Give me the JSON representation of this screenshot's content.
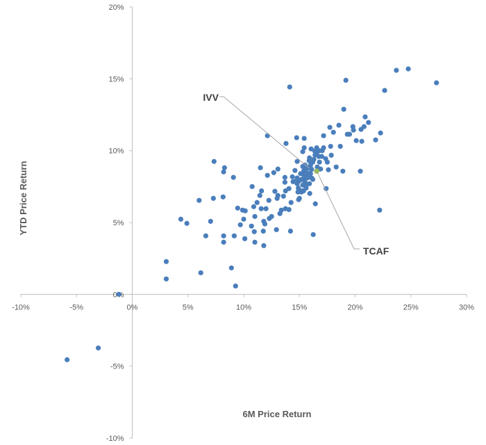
{
  "chart_data": {
    "type": "scatter",
    "xlabel": "6M Price Return",
    "ylabel": "YTD Price Return",
    "xlim": [
      -10,
      30
    ],
    "ylim": [
      -10,
      20
    ],
    "x_ticks": [
      "-10%",
      "-5%",
      "0%",
      "5%",
      "10%",
      "15%",
      "20%",
      "25%",
      "30%"
    ],
    "y_ticks": [
      "-10%",
      "-5%",
      "0%",
      "5%",
      "10%",
      "15%",
      "20%"
    ],
    "x_tick_values": [
      -10,
      -5,
      0,
      5,
      10,
      15,
      20,
      25,
      30
    ],
    "y_tick_values": [
      -10,
      -5,
      0,
      5,
      10,
      15,
      20
    ],
    "grid": false,
    "point_color": "#4a7ebb",
    "highlight_color": "#9bbb59",
    "axis_color": "#bfbfbf",
    "points": [
      [
        -5.85,
        -4.55
      ],
      [
        -3.05,
        -3.73
      ],
      [
        -1.2,
        0
      ],
      [
        3.05,
        2.28
      ],
      [
        3.05,
        1.07
      ],
      [
        4.36,
        5.23
      ],
      [
        4.9,
        4.94
      ],
      [
        6.0,
        6.54
      ],
      [
        6.15,
        1.5
      ],
      [
        6.6,
        4.07
      ],
      [
        7.03,
        5.08
      ],
      [
        7.28,
        6.68
      ],
      [
        7.34,
        9.25
      ],
      [
        8.15,
        6.78
      ],
      [
        8.2,
        3.63
      ],
      [
        8.2,
        4.07
      ],
      [
        8.28,
        8.81
      ],
      [
        8.2,
        8.52
      ],
      [
        8.9,
        1.84
      ],
      [
        9.08,
        8.14
      ],
      [
        9.27,
        0.58
      ],
      [
        9.15,
        4.07
      ],
      [
        9.46,
        6.0
      ],
      [
        9.7,
        4.84
      ],
      [
        9.9,
        5.86
      ],
      [
        10.14,
        5.81
      ],
      [
        10.0,
        5.23
      ],
      [
        10.1,
        3.87
      ],
      [
        10.7,
        4.75
      ],
      [
        10.76,
        7.5
      ],
      [
        10.9,
        6.1
      ],
      [
        11.0,
        3.63
      ],
      [
        10.95,
        4.36
      ],
      [
        11.0,
        5.42
      ],
      [
        11.2,
        6.39
      ],
      [
        11.45,
        6.88
      ],
      [
        11.5,
        8.81
      ],
      [
        11.57,
        5.96
      ],
      [
        11.6,
        7.2
      ],
      [
        11.76,
        4.4
      ],
      [
        11.8,
        5.08
      ],
      [
        12.0,
        5.96
      ],
      [
        11.8,
        3.39
      ],
      [
        11.9,
        4.9
      ],
      [
        12.13,
        11.04
      ],
      [
        12.13,
        8.28
      ],
      [
        12.26,
        6.54
      ],
      [
        12.3,
        5.28
      ],
      [
        12.5,
        5.42
      ],
      [
        12.7,
        8.47
      ],
      [
        12.8,
        7.17
      ],
      [
        12.94,
        4.5
      ],
      [
        13.07,
        8.72
      ],
      [
        13.0,
        6.68
      ],
      [
        13.07,
        6.88
      ],
      [
        13.25,
        5.62
      ],
      [
        13.38,
        5.86
      ],
      [
        13.57,
        6.83
      ],
      [
        13.7,
        8.14
      ],
      [
        13.7,
        7.8
      ],
      [
        13.75,
        7.2
      ],
      [
        13.75,
        5.96
      ],
      [
        13.8,
        10.5
      ],
      [
        14.06,
        5.9
      ],
      [
        14.06,
        7.36
      ],
      [
        14.13,
        14.43
      ],
      [
        14.2,
        4.4
      ],
      [
        14.25,
        6.39
      ],
      [
        14.37,
        8.18
      ],
      [
        14.43,
        7.84
      ],
      [
        14.6,
        8.62
      ],
      [
        14.75,
        10.9
      ],
      [
        14.8,
        9.25
      ],
      [
        14.8,
        7.7
      ],
      [
        14.87,
        7.12
      ],
      [
        14.93,
        6.59
      ],
      [
        15.0,
        6.68
      ],
      [
        15.18,
        7.12
      ],
      [
        15.3,
        9.93
      ],
      [
        15.37,
        7.2
      ],
      [
        15.43,
        10.85
      ],
      [
        15.43,
        10.2
      ],
      [
        15.43,
        7.99
      ],
      [
        15.56,
        8.67
      ],
      [
        15.62,
        7.6
      ],
      [
        15.74,
        8.38
      ],
      [
        15.87,
        9.3
      ],
      [
        15.93,
        8.43
      ],
      [
        15.93,
        7.02
      ],
      [
        16.05,
        10.12
      ],
      [
        16.1,
        8.09
      ],
      [
        16.24,
        4.16
      ],
      [
        16.37,
        9.98
      ],
      [
        16.43,
        6.3
      ],
      [
        16.55,
        10.2
      ],
      [
        16.6,
        8.86
      ],
      [
        16.74,
        9.59
      ],
      [
        16.8,
        9.2
      ],
      [
        16.9,
        8.72
      ],
      [
        17.05,
        10.0
      ],
      [
        17.17,
        11.04
      ],
      [
        17.17,
        10.2
      ],
      [
        17.4,
        7.36
      ],
      [
        17.36,
        9.44
      ],
      [
        17.5,
        9.2
      ],
      [
        17.6,
        8.67
      ],
      [
        17.73,
        11.62
      ],
      [
        17.8,
        10.3
      ],
      [
        17.86,
        9.68
      ],
      [
        18.05,
        11.28
      ],
      [
        18.3,
        8.86
      ],
      [
        18.54,
        11.77
      ],
      [
        18.67,
        10.3
      ],
      [
        18.9,
        8.57
      ],
      [
        18.98,
        12.88
      ],
      [
        19.17,
        14.9
      ],
      [
        19.3,
        11.14
      ],
      [
        19.5,
        11.14
      ],
      [
        19.8,
        11.67
      ],
      [
        19.85,
        11.43
      ],
      [
        20.1,
        10.7
      ],
      [
        20.53,
        11.48
      ],
      [
        20.6,
        10.65
      ],
      [
        20.8,
        11.67
      ],
      [
        20.9,
        12.35
      ],
      [
        21.2,
        11.96
      ],
      [
        21.84,
        10.75
      ],
      [
        22.2,
        5.86
      ],
      [
        22.28,
        11.23
      ],
      [
        20.47,
        8.57
      ],
      [
        22.65,
        14.19
      ],
      [
        23.7,
        15.59
      ],
      [
        24.77,
        15.69
      ],
      [
        27.3,
        14.72
      ],
      [
        15.2,
        8.0
      ],
      [
        15.4,
        8.3
      ],
      [
        15.6,
        8.5
      ],
      [
        15.8,
        8.8
      ],
      [
        16.0,
        9.0
      ],
      [
        16.2,
        9.2
      ],
      [
        15.5,
        7.8
      ],
      [
        15.3,
        7.6
      ],
      [
        15.7,
        8.1
      ],
      [
        16.1,
        8.7
      ],
      [
        15.9,
        9.5
      ],
      [
        16.3,
        9.4
      ],
      [
        14.8,
        8.1
      ],
      [
        15.1,
        8.4
      ],
      [
        15.0,
        7.9
      ],
      [
        15.6,
        7.4
      ],
      [
        16.4,
        9.7
      ],
      [
        16.6,
        9.9
      ],
      [
        17.0,
        9.6
      ],
      [
        16.8,
        10.0
      ],
      [
        15.4,
        8.6
      ],
      [
        15.8,
        8.2
      ],
      [
        14.9,
        7.4
      ],
      [
        15.2,
        7.2
      ],
      [
        16.0,
        8.4
      ],
      [
        15.5,
        9.0
      ],
      [
        15.3,
        8.9
      ],
      [
        14.7,
        7.9
      ],
      [
        15.9,
        7.7
      ],
      [
        16.2,
        8.0
      ]
    ],
    "annotations": [
      {
        "label": "IVV",
        "x": 15.9,
        "y": 8.77,
        "highlight": false
      },
      {
        "label": "TCAF",
        "x": 16.55,
        "y": 8.57,
        "highlight": true
      }
    ]
  }
}
